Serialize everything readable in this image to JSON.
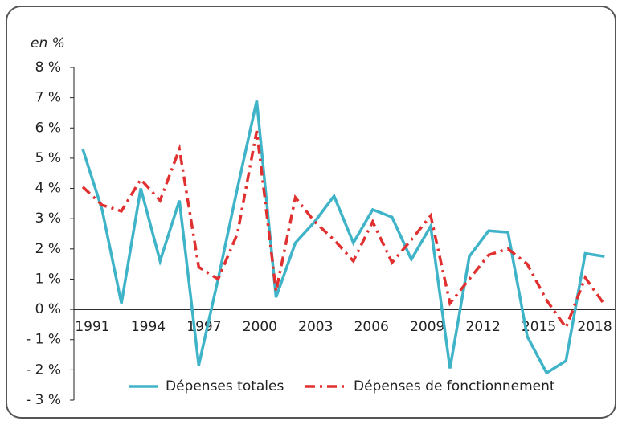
{
  "chart_data": {
    "type": "line",
    "y_axis_label": "en %",
    "categories": [
      "1991",
      null,
      null,
      "1994",
      null,
      null,
      "1997",
      null,
      null,
      "2000",
      null,
      null,
      "2003",
      null,
      null,
      "2006",
      null,
      null,
      "2009",
      null,
      null,
      "2012",
      null,
      null,
      "2015",
      null,
      null,
      "2018"
    ],
    "series": [
      {
        "name": "Dépenses totales",
        "color": "#3fb3c8",
        "dash": "solid",
        "values": [
          5.3,
          3.3,
          0.2,
          4.0,
          1.6,
          3.6,
          -1.85,
          1.0,
          4.0,
          6.9,
          0.4,
          2.2,
          2.9,
          3.75,
          2.2,
          3.3,
          3.05,
          1.65,
          2.75,
          -1.95,
          1.75,
          2.6,
          2.55,
          -0.9,
          -2.1,
          -1.7,
          1.85,
          1.75
        ]
      },
      {
        "name": "Dépenses de fonctionnement",
        "color": "#e03030",
        "dash": "dashdot",
        "values": [
          4.05,
          3.45,
          3.25,
          4.3,
          3.6,
          5.3,
          1.4,
          1.0,
          2.5,
          5.9,
          0.6,
          3.7,
          2.9,
          2.3,
          1.6,
          2.9,
          1.55,
          2.3,
          3.1,
          0.2,
          1.0,
          1.8,
          2.0,
          1.5,
          0.3,
          -0.6,
          1.05,
          0.15
        ]
      }
    ],
    "ylim": [
      -3,
      8
    ],
    "yticks": [
      {
        "value": -3,
        "label": "- 3 %"
      },
      {
        "value": -2,
        "label": "- 2 %"
      },
      {
        "value": -1,
        "label": "- 1 %"
      },
      {
        "value": 0,
        "label": "0 %"
      },
      {
        "value": 1,
        "label": "1 %"
      },
      {
        "value": 2,
        "label": "2 %"
      },
      {
        "value": 3,
        "label": "3 %"
      },
      {
        "value": 4,
        "label": "4 %"
      },
      {
        "value": 5,
        "label": "5 %"
      },
      {
        "value": 6,
        "label": "6 %"
      },
      {
        "value": 7,
        "label": "7 %"
      },
      {
        "value": 8,
        "label": "8 %"
      }
    ],
    "legend": "bottom"
  }
}
